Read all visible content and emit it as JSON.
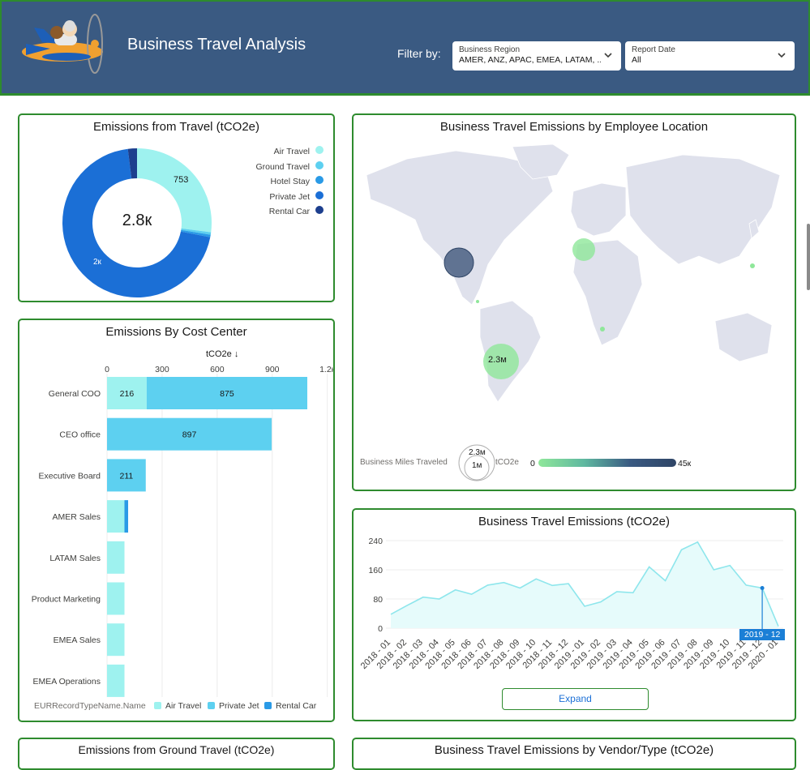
{
  "header": {
    "title": "Business Travel Analysis",
    "filter_label": "Filter by:",
    "filters": [
      {
        "label": "Business Region",
        "value": "AMER, ANZ, APAC, EMEA, LATAM, ..."
      },
      {
        "label": "Report Date",
        "value": "All"
      }
    ]
  },
  "emissions_travel": {
    "title": "Emissions from Travel (tCO2e)",
    "center_value": "2.8к",
    "slice_labels": [
      "753",
      "2к"
    ],
    "legend": [
      {
        "name": "Air Travel",
        "color": "#9ef2ef"
      },
      {
        "name": "Ground Travel",
        "color": "#5dd0f0"
      },
      {
        "name": "Hotel Stay",
        "color": "#2a9ae6"
      },
      {
        "name": "Private Jet",
        "color": "#1b6fd6"
      },
      {
        "name": "Rental Car",
        "color": "#1d3f8e"
      }
    ]
  },
  "cost_center": {
    "title": "Emissions By Cost Center",
    "measure_label": "tCO2e ↓",
    "axis_ticks": [
      "0",
      "300",
      "600",
      "900",
      "1.2к"
    ],
    "dimension_label": "EURRecordTypeName.Name",
    "legend": [
      {
        "name": "Air Travel",
        "color": "#9ef2ef"
      },
      {
        "name": "Private Jet",
        "color": "#5dd0f0"
      },
      {
        "name": "Rental Car",
        "color": "#2a9ae6"
      }
    ]
  },
  "map": {
    "title": "Business Travel Emissions by Employee Location",
    "size_legend_label": "Business Miles Traveled",
    "size_legend_values": [
      "2.3м",
      "1м"
    ],
    "color_legend_label": "tCO2e",
    "color_legend_min": "0",
    "color_legend_max": "45к",
    "bubble_label": "2.3м"
  },
  "trend": {
    "title": "Business Travel Emissions (tCO2e)",
    "tooltip": "2019 - 12",
    "expand_label": "Expand"
  },
  "bottom": {
    "left_title": "Emissions from Ground Travel (tCO2e)",
    "right_title": "Business Travel Emissions by Vendor/Type (tCO2e)"
  },
  "chart_data": [
    {
      "type": "pie",
      "title": "Emissions from Travel (tCO2e)",
      "categories": [
        "Air Travel",
        "Ground Travel",
        "Hotel Stay",
        "Private Jet",
        "Rental Car"
      ],
      "values": [
        753,
        15,
        15,
        1950,
        55
      ],
      "total_label": "2.8к"
    },
    {
      "type": "bar",
      "title": "Emissions By Cost Center",
      "categories": [
        "General COO",
        "CEO office",
        "Executive Board",
        "AMER Sales",
        "LATAM Sales",
        "Product Marketing",
        "EMEA Sales",
        "EMEA Operations"
      ],
      "series": [
        {
          "name": "Air Travel",
          "values": [
            216,
            0,
            0,
            95,
            95,
            95,
            95,
            95
          ]
        },
        {
          "name": "Private Jet",
          "values": [
            875,
            897,
            211,
            0,
            0,
            0,
            0,
            0
          ]
        },
        {
          "name": "Rental Car",
          "values": [
            0,
            0,
            0,
            20,
            0,
            0,
            0,
            0
          ]
        }
      ],
      "data_labels": [
        [
          "216",
          "875",
          ""
        ],
        [
          "",
          "897",
          ""
        ],
        [
          "",
          "211",
          ""
        ],
        [
          "",
          "",
          ""
        ],
        [
          "",
          "",
          ""
        ],
        [
          "",
          "",
          ""
        ],
        [
          "",
          "",
          ""
        ],
        [
          "",
          "",
          ""
        ]
      ],
      "xlabel": "tCO2e",
      "xlim": [
        0,
        1200
      ]
    },
    {
      "type": "area",
      "title": "Business Travel Emissions (tCO2e)",
      "x": [
        "2018 - 01",
        "2018 - 02",
        "2018 - 03",
        "2018 - 04",
        "2018 - 05",
        "2018 - 06",
        "2018 - 07",
        "2018 - 08",
        "2018 - 09",
        "2018 - 10",
        "2018 - 11",
        "2018 - 12",
        "2019 - 01",
        "2019 - 02",
        "2019 - 03",
        "2019 - 04",
        "2019 - 05",
        "2019 - 06",
        "2019 - 07",
        "2019 - 08",
        "2019 - 09",
        "2019 - 10",
        "2019 - 11",
        "2019 - 12",
        "2020 - 01"
      ],
      "values": [
        38,
        62,
        85,
        80,
        105,
        93,
        118,
        125,
        110,
        135,
        117,
        122,
        60,
        72,
        100,
        97,
        168,
        130,
        215,
        236,
        160,
        172,
        118,
        110,
        5
      ],
      "ylim": [
        0,
        240
      ],
      "yticks": [
        "0",
        "80",
        "160",
        "240"
      ]
    }
  ]
}
